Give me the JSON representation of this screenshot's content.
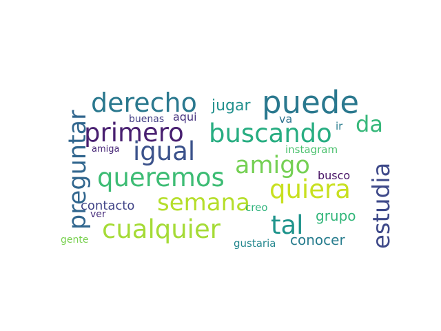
{
  "words": [
    {
      "text": "puede",
      "color": "#2a788e"
    },
    {
      "text": "derecho",
      "color": "#2a788e"
    },
    {
      "text": "primero",
      "color": "#481f70"
    },
    {
      "text": "buscando",
      "color": "#27ad81"
    },
    {
      "text": "igual",
      "color": "#3b528b"
    },
    {
      "text": "da",
      "color": "#35b779"
    },
    {
      "text": "jugar",
      "color": "#21908d"
    },
    {
      "text": "va",
      "color": "#2c728e"
    },
    {
      "text": "ir",
      "color": "#287c8e"
    },
    {
      "text": "buenas",
      "color": "#433e85"
    },
    {
      "text": "aqui",
      "color": "#46327e"
    },
    {
      "text": "amiga",
      "color": "#482878"
    },
    {
      "text": "instagram",
      "color": "#4ac16d"
    },
    {
      "text": "amigo",
      "color": "#75d054"
    },
    {
      "text": "queremos",
      "color": "#3dbc74"
    },
    {
      "text": "quiera",
      "color": "#c8e020"
    },
    {
      "text": "preguntar",
      "color": "#31668e"
    },
    {
      "text": "estudia",
      "color": "#3e4989"
    },
    {
      "text": "busco",
      "color": "#471365"
    },
    {
      "text": "semana",
      "color": "#b5de2b"
    },
    {
      "text": "contacto",
      "color": "#414487"
    },
    {
      "text": "creo",
      "color": "#2eb37c"
    },
    {
      "text": "grupo",
      "color": "#32b67a"
    },
    {
      "text": "tal",
      "color": "#1f948c"
    },
    {
      "text": "ver",
      "color": "#472d7b"
    },
    {
      "text": "cualquier",
      "color": "#a5db36"
    },
    {
      "text": "gente",
      "color": "#7ad151"
    },
    {
      "text": "gustaria",
      "color": "#24878e"
    },
    {
      "text": "conocer",
      "color": "#287d8e"
    }
  ]
}
